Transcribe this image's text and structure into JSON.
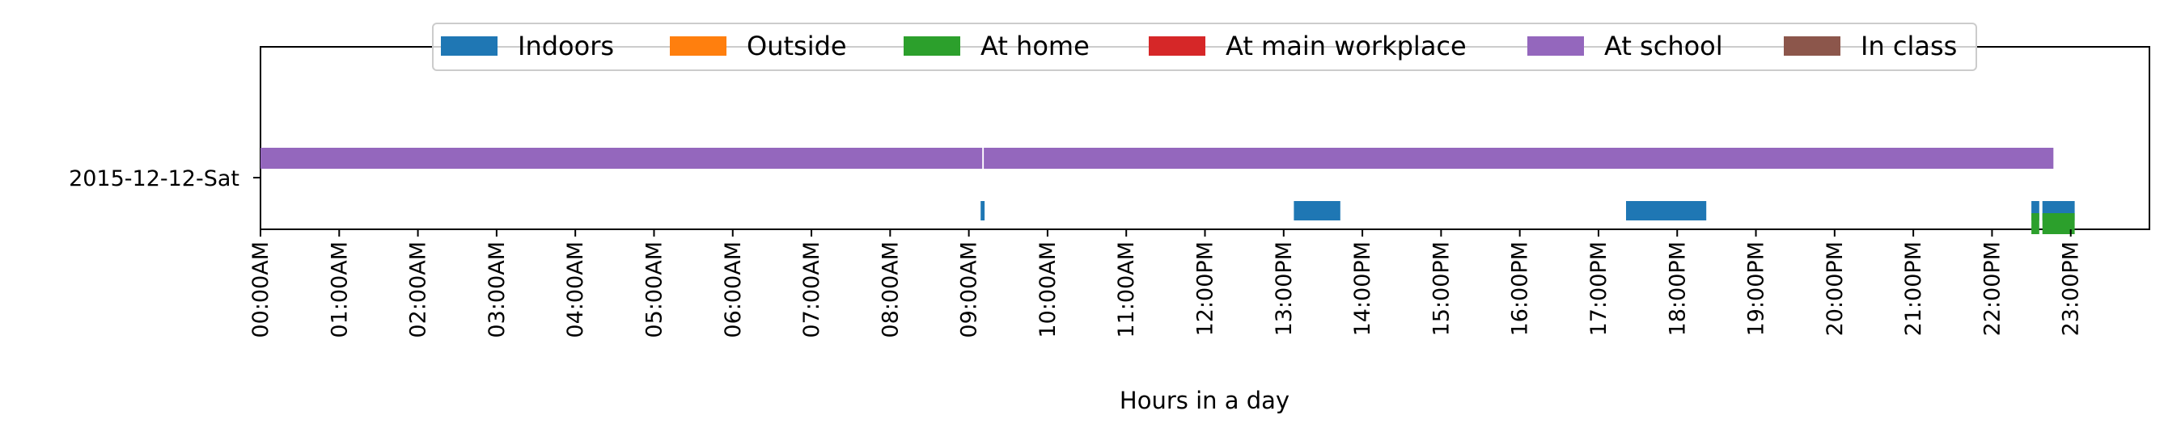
{
  "chart_data": {
    "type": "timeline",
    "title": "",
    "xlabel": "Hours in a day",
    "ylabel": "",
    "xlim": [
      0,
      24
    ],
    "x_ticks": [
      {
        "value": 0,
        "label": "00:00AM"
      },
      {
        "value": 1,
        "label": "01:00AM"
      },
      {
        "value": 2,
        "label": "02:00AM"
      },
      {
        "value": 3,
        "label": "03:00AM"
      },
      {
        "value": 4,
        "label": "04:00AM"
      },
      {
        "value": 5,
        "label": "05:00AM"
      },
      {
        "value": 6,
        "label": "06:00AM"
      },
      {
        "value": 7,
        "label": "07:00AM"
      },
      {
        "value": 8,
        "label": "08:00AM"
      },
      {
        "value": 9,
        "label": "09:00AM"
      },
      {
        "value": 10,
        "label": "10:00AM"
      },
      {
        "value": 11,
        "label": "11:00AM"
      },
      {
        "value": 12,
        "label": "12:00PM"
      },
      {
        "value": 13,
        "label": "13:00PM"
      },
      {
        "value": 14,
        "label": "14:00PM"
      },
      {
        "value": 15,
        "label": "15:00PM"
      },
      {
        "value": 16,
        "label": "16:00PM"
      },
      {
        "value": 17,
        "label": "17:00PM"
      },
      {
        "value": 18,
        "label": "18:00PM"
      },
      {
        "value": 19,
        "label": "19:00PM"
      },
      {
        "value": 20,
        "label": "20:00PM"
      },
      {
        "value": 21,
        "label": "21:00PM"
      },
      {
        "value": 22,
        "label": "22:00PM"
      },
      {
        "value": 23,
        "label": "23:00PM"
      }
    ],
    "day_label": "2015-12-12-Sat",
    "grid": false,
    "legend_position": "top-center",
    "series": [
      {
        "name": "Indoors",
        "color": "#1f77b4",
        "intervals": [
          [
            9.15,
            9.2
          ],
          [
            13.13,
            13.72
          ],
          [
            17.35,
            18.37
          ],
          [
            22.5,
            22.6
          ],
          [
            22.64,
            23.05
          ]
        ]
      },
      {
        "name": "Outside",
        "color": "#ff7f0e",
        "intervals": []
      },
      {
        "name": "At home",
        "color": "#2ca02c",
        "intervals": [
          [
            22.5,
            22.6
          ],
          [
            22.64,
            23.05
          ]
        ]
      },
      {
        "name": "At main workplace",
        "color": "#d62728",
        "intervals": []
      },
      {
        "name": "At school",
        "color": "#9467bd",
        "intervals": [
          [
            0,
            9.17
          ],
          [
            9.19,
            22.78
          ]
        ]
      },
      {
        "name": "In class",
        "color": "#8c564b",
        "intervals": []
      }
    ]
  }
}
